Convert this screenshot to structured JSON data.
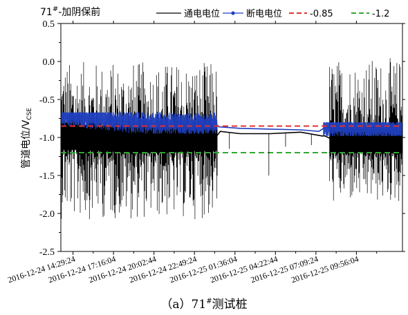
{
  "chart_data": {
    "type": "line",
    "title_prefix": "71",
    "title_sup": "#",
    "title_suffix": "-加阴保前",
    "ylabel_main": "管道电位/V",
    "ylabel_sub": "CSE",
    "caption_prefix": "（a）71",
    "caption_sup": "#",
    "caption_suffix": "测试桩",
    "ylim": [
      -2.5,
      0.5
    ],
    "yticks": [
      "0.5",
      "0.0",
      "-0.5",
      "-1.0",
      "-1.5",
      "-2.0",
      "-2.5"
    ],
    "x_ticks": [
      "2016-12-24 14:29:24",
      "2016-12-24 17:16:04",
      "2016-12-24 20:02:44",
      "2016-12-24 22:49:24",
      "2016-12-25 01:36:04",
      "2016-12-25 04:22:44",
      "2016-12-25 07:09:24",
      "2016-12-25 09:56:04"
    ],
    "x_span_hours": [
      -0.8,
      21.7
    ],
    "grid": false,
    "legend_position": "top",
    "series": [
      {
        "name": "通电电位",
        "color": "#000000",
        "points": [
          [
            -0.8,
            -0.95
          ],
          [
            0,
            -0.98
          ],
          [
            2,
            -1.0
          ],
          [
            4,
            -1.02
          ],
          [
            6,
            -1.02
          ],
          [
            8,
            -1.0
          ],
          [
            9.4,
            -1.0
          ],
          [
            9.7,
            -0.92
          ],
          [
            11,
            -0.95
          ],
          [
            13,
            -0.95
          ],
          [
            15,
            -0.93
          ],
          [
            16.4,
            -0.98
          ],
          [
            16.6,
            -0.98
          ],
          [
            17,
            -1.02
          ],
          [
            19,
            -1.02
          ],
          [
            21.7,
            -1.03
          ]
        ],
        "noisy_ranges": [
          {
            "x": [
              -0.8,
              9.5
            ],
            "low": -1.9,
            "high": -0.15
          },
          {
            "x": [
              16.9,
              21.7
            ],
            "low": -1.7,
            "high": -0.1
          }
        ]
      },
      {
        "name": "断电电位",
        "color": "#1f3fbf",
        "points": [
          [
            -0.8,
            -0.7
          ],
          [
            0,
            -0.72
          ],
          [
            2,
            -0.76
          ],
          [
            4,
            -0.8
          ],
          [
            6,
            -0.82
          ],
          [
            8,
            -0.83
          ],
          [
            9.4,
            -0.82
          ],
          [
            9.6,
            -0.86
          ],
          [
            11,
            -0.88
          ],
          [
            13,
            -0.89
          ],
          [
            15,
            -0.9
          ],
          [
            16.2,
            -0.92
          ],
          [
            16.5,
            -0.88
          ],
          [
            17,
            -0.86
          ],
          [
            19,
            -0.88
          ],
          [
            21.7,
            -0.89
          ]
        ],
        "band_ranges": [
          {
            "x": [
              -0.8,
              9.5
            ],
            "low": -0.95,
            "high": -0.67
          },
          {
            "x": [
              16.5,
              21.7
            ],
            "low": -0.98,
            "high": -0.8
          }
        ]
      },
      {
        "name": "-0.85",
        "color": "#e03030",
        "dashed": true,
        "points": [
          [
            -0.8,
            -0.85
          ],
          [
            21.7,
            -0.85
          ]
        ]
      },
      {
        "name": "-1.2",
        "color": "#2ea82e",
        "dashed": true,
        "points": [
          [
            -0.8,
            -1.2
          ],
          [
            21.7,
            -1.2
          ]
        ]
      }
    ]
  }
}
